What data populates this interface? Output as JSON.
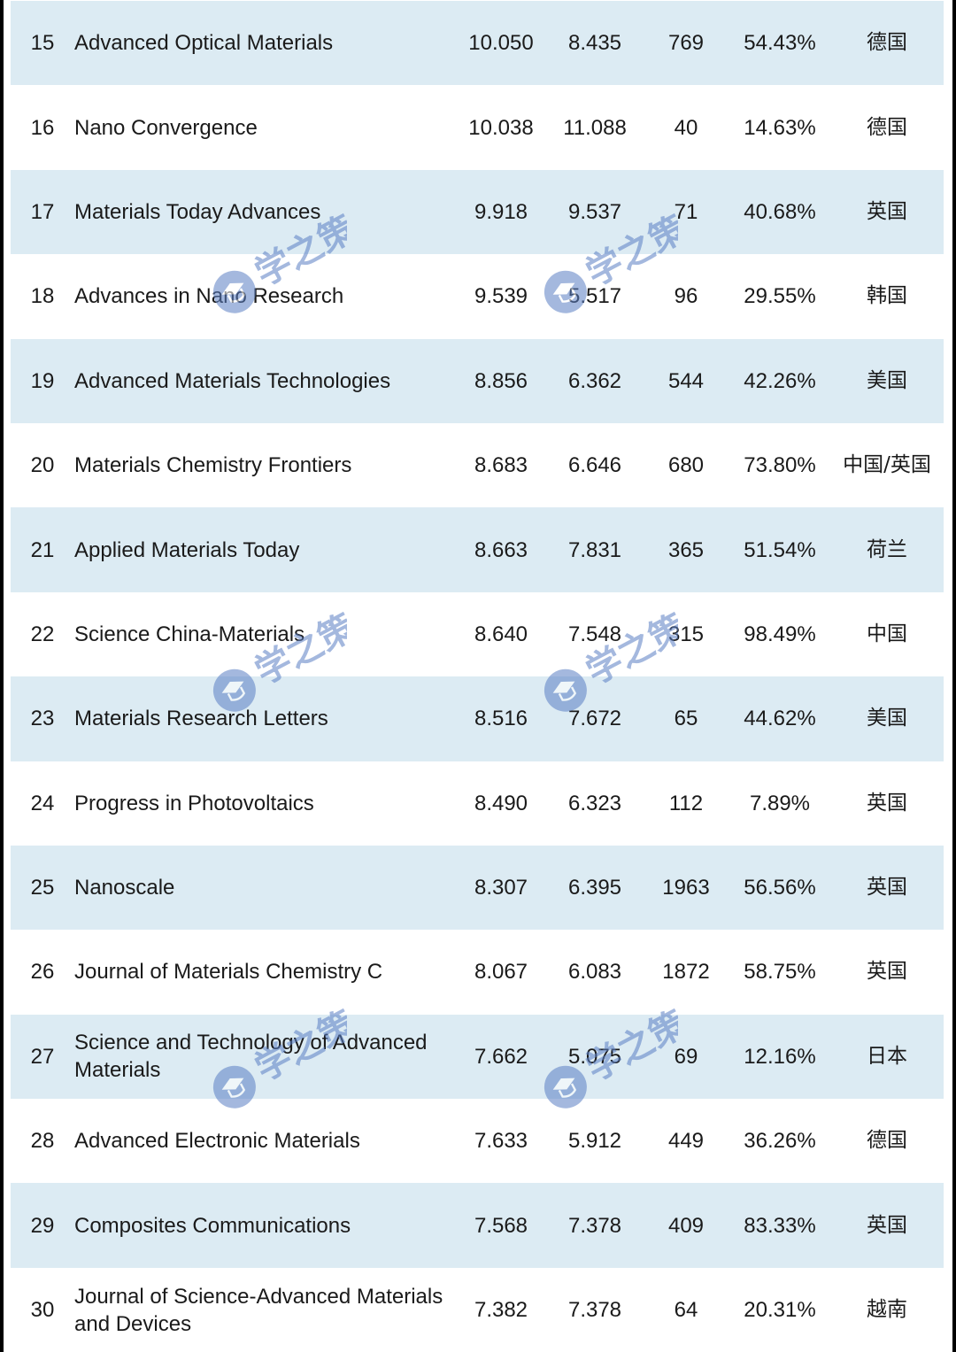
{
  "rows": [
    {
      "rank": "15",
      "name": "Advanced Optical Materials",
      "impact": "10.050",
      "five_year": "8.435",
      "count": "769",
      "pct": "54.43%",
      "country": "德国"
    },
    {
      "rank": "16",
      "name": "Nano Convergence",
      "impact": "10.038",
      "five_year": "11.088",
      "count": "40",
      "pct": "14.63%",
      "country": "德国"
    },
    {
      "rank": "17",
      "name": "Materials Today Advances",
      "impact": "9.918",
      "five_year": "9.537",
      "count": "71",
      "pct": "40.68%",
      "country": "英国"
    },
    {
      "rank": "18",
      "name": "Advances in Nano Research",
      "impact": "9.539",
      "five_year": "5.517",
      "count": "96",
      "pct": "29.55%",
      "country": "韩国"
    },
    {
      "rank": "19",
      "name": "Advanced Materials Technologies",
      "impact": "8.856",
      "five_year": "6.362",
      "count": "544",
      "pct": "42.26%",
      "country": "美国"
    },
    {
      "rank": "20",
      "name": "Materials Chemistry Frontiers",
      "impact": "8.683",
      "five_year": "6.646",
      "count": "680",
      "pct": "73.80%",
      "country": "中国/英国"
    },
    {
      "rank": "21",
      "name": "Applied Materials Today",
      "impact": "8.663",
      "five_year": "7.831",
      "count": "365",
      "pct": "51.54%",
      "country": "荷兰"
    },
    {
      "rank": "22",
      "name": "Science China-Materials",
      "impact": "8.640",
      "five_year": "7.548",
      "count": "315",
      "pct": "98.49%",
      "country": "中国"
    },
    {
      "rank": "23",
      "name": "Materials Research Letters",
      "impact": "8.516",
      "five_year": "7.672",
      "count": "65",
      "pct": "44.62%",
      "country": "美国"
    },
    {
      "rank": "24",
      "name": "Progress in Photovoltaics",
      "impact": "8.490",
      "five_year": "6.323",
      "count": "112",
      "pct": "7.89%",
      "country": "英国"
    },
    {
      "rank": "25",
      "name": "Nanoscale",
      "impact": "8.307",
      "five_year": "6.395",
      "count": "1963",
      "pct": "56.56%",
      "country": "英国"
    },
    {
      "rank": "26",
      "name": "Journal of Materials Chemistry C",
      "impact": "8.067",
      "five_year": "6.083",
      "count": "1872",
      "pct": "58.75%",
      "country": "英国"
    },
    {
      "rank": "27",
      "name": "Science and Technology of Advanced Materials",
      "impact": "7.662",
      "five_year": "5.075",
      "count": "69",
      "pct": "12.16%",
      "country": "日本"
    },
    {
      "rank": "28",
      "name": "Advanced Electronic Materials",
      "impact": "7.633",
      "five_year": "5.912",
      "count": "449",
      "pct": "36.26%",
      "country": "德国"
    },
    {
      "rank": "29",
      "name": "Composites Communications",
      "impact": "7.568",
      "five_year": "7.378",
      "count": "409",
      "pct": "83.33%",
      "country": "英国"
    },
    {
      "rank": "30",
      "name": "Journal of Science-Advanced Materials and Devices",
      "impact": "7.382",
      "five_year": "7.378",
      "count": "64",
      "pct": "20.31%",
      "country": "越南"
    }
  ],
  "watermark": {
    "text": "学之策",
    "icon": "graduation-cap-badge-icon",
    "color": "#5b7fc4"
  },
  "colors": {
    "shaded_row": "#dcebf3",
    "plain_row": "#ffffff",
    "text": "#1a1a1a"
  }
}
